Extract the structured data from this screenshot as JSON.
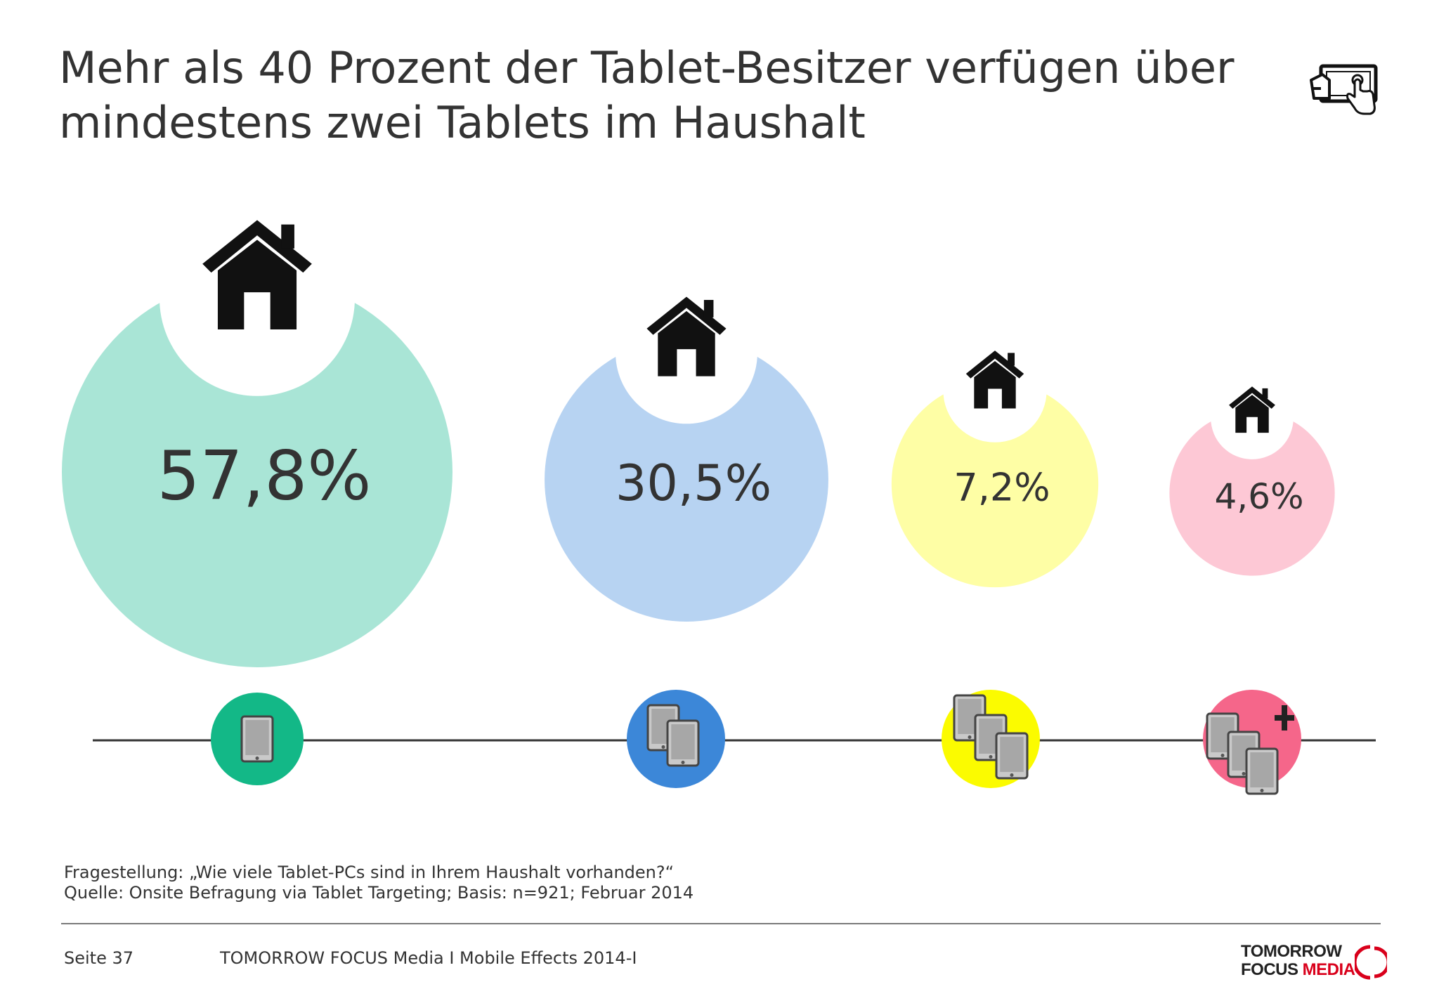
{
  "title_lines": [
    "Mehr als 40 Prozent der Tablet-Besitzer verfügen über",
    "mindestens zwei Tablets im Haushalt"
  ],
  "icons": {
    "top_right": "tablet-touch-icon",
    "bubble": "house-icon",
    "category": [
      "tablet-icon",
      "two-tablets-icon",
      "three-tablets-icon",
      "more-tablets-icon"
    ]
  },
  "chart_data": {
    "type": "bubble",
    "categories": [
      "1 Tablet",
      "2 Tablets",
      "3 Tablets",
      "mehr als 3 Tablets"
    ],
    "values": [
      57.8,
      30.5,
      7.2,
      4.6
    ],
    "labels": [
      "57,8%",
      "30,5%",
      "7,2%",
      "4,6%"
    ],
    "bubble_colors": [
      "#a9e5d6",
      "#b7d3f2",
      "#fefea5",
      "#fdc8d5"
    ],
    "marker_colors": [
      "#13b887",
      "#3c87d8",
      "#fbfb00",
      "#f5668a"
    ]
  },
  "footnote": {
    "question": "Fragestellung: „Wie viele Tablet-PCs  sind in Ihrem Haushalt vorhanden?“",
    "source": "Quelle: Onsite Befragung via Tablet Targeting; Basis: n=921; Februar 2014"
  },
  "footer": {
    "page": "Seite 37",
    "text": "TOMORROW FOCUS Media  I  Mobile Effects 2014-I",
    "logo_line1": "TOMORROW",
    "logo_line2_a": "FOCUS",
    "logo_line2_b": "MEDIA"
  }
}
